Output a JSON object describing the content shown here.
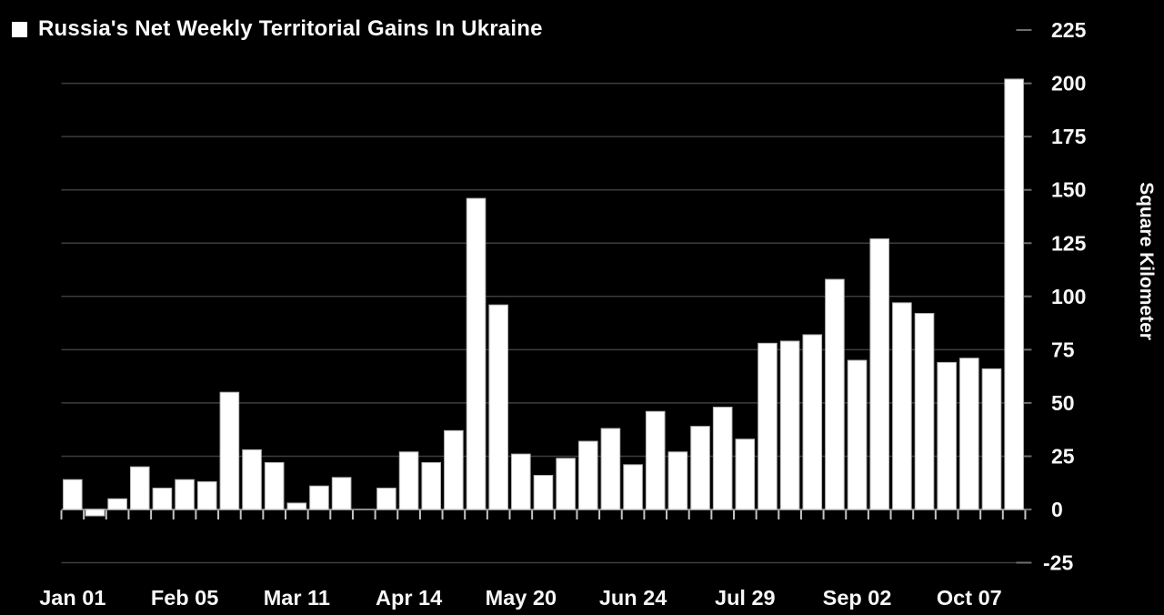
{
  "title": "Russia's Net Weekly Territorial Gains In Ukraine",
  "colors": {
    "background": "#000000",
    "bar_fill": "#ffffff",
    "bar_border": "#b5b5b5",
    "gridline": "#3d3d3d",
    "baseline": "#8a8a8a",
    "axis_tick": "#c4c4c4",
    "right_tick": "#6e6e6e",
    "text": "#f7f7f7"
  },
  "chart_data": {
    "type": "bar",
    "title": "Russia's Net Weekly Territorial Gains In Ukraine",
    "xlabel": "",
    "ylabel": "Square Kilometer",
    "ylim": [
      -25,
      225
    ],
    "y_ticks": [
      225,
      200,
      175,
      150,
      125,
      100,
      75,
      50,
      25,
      0,
      -25
    ],
    "grid": true,
    "legend_position": "top-left",
    "values": [
      14,
      -3,
      5,
      20,
      10,
      14,
      13,
      55,
      28,
      22,
      3,
      11,
      15,
      0,
      10,
      27,
      22,
      37,
      146,
      96,
      26,
      16,
      24,
      32,
      38,
      21,
      46,
      27,
      39,
      48,
      33,
      78,
      79,
      82,
      108,
      70,
      127,
      97,
      92,
      69,
      71,
      66,
      202
    ],
    "x_tick_labels": [
      {
        "index": 0,
        "label": "Jan 01"
      },
      {
        "index": 5,
        "label": "Feb 05"
      },
      {
        "index": 10,
        "label": "Mar 11"
      },
      {
        "index": 15,
        "label": "Apr 14"
      },
      {
        "index": 20,
        "label": "May 20"
      },
      {
        "index": 25,
        "label": "Jun 24"
      },
      {
        "index": 30,
        "label": "Jul 29"
      },
      {
        "index": 35,
        "label": "Sep 02"
      },
      {
        "index": 40,
        "label": "Oct 07"
      }
    ]
  }
}
